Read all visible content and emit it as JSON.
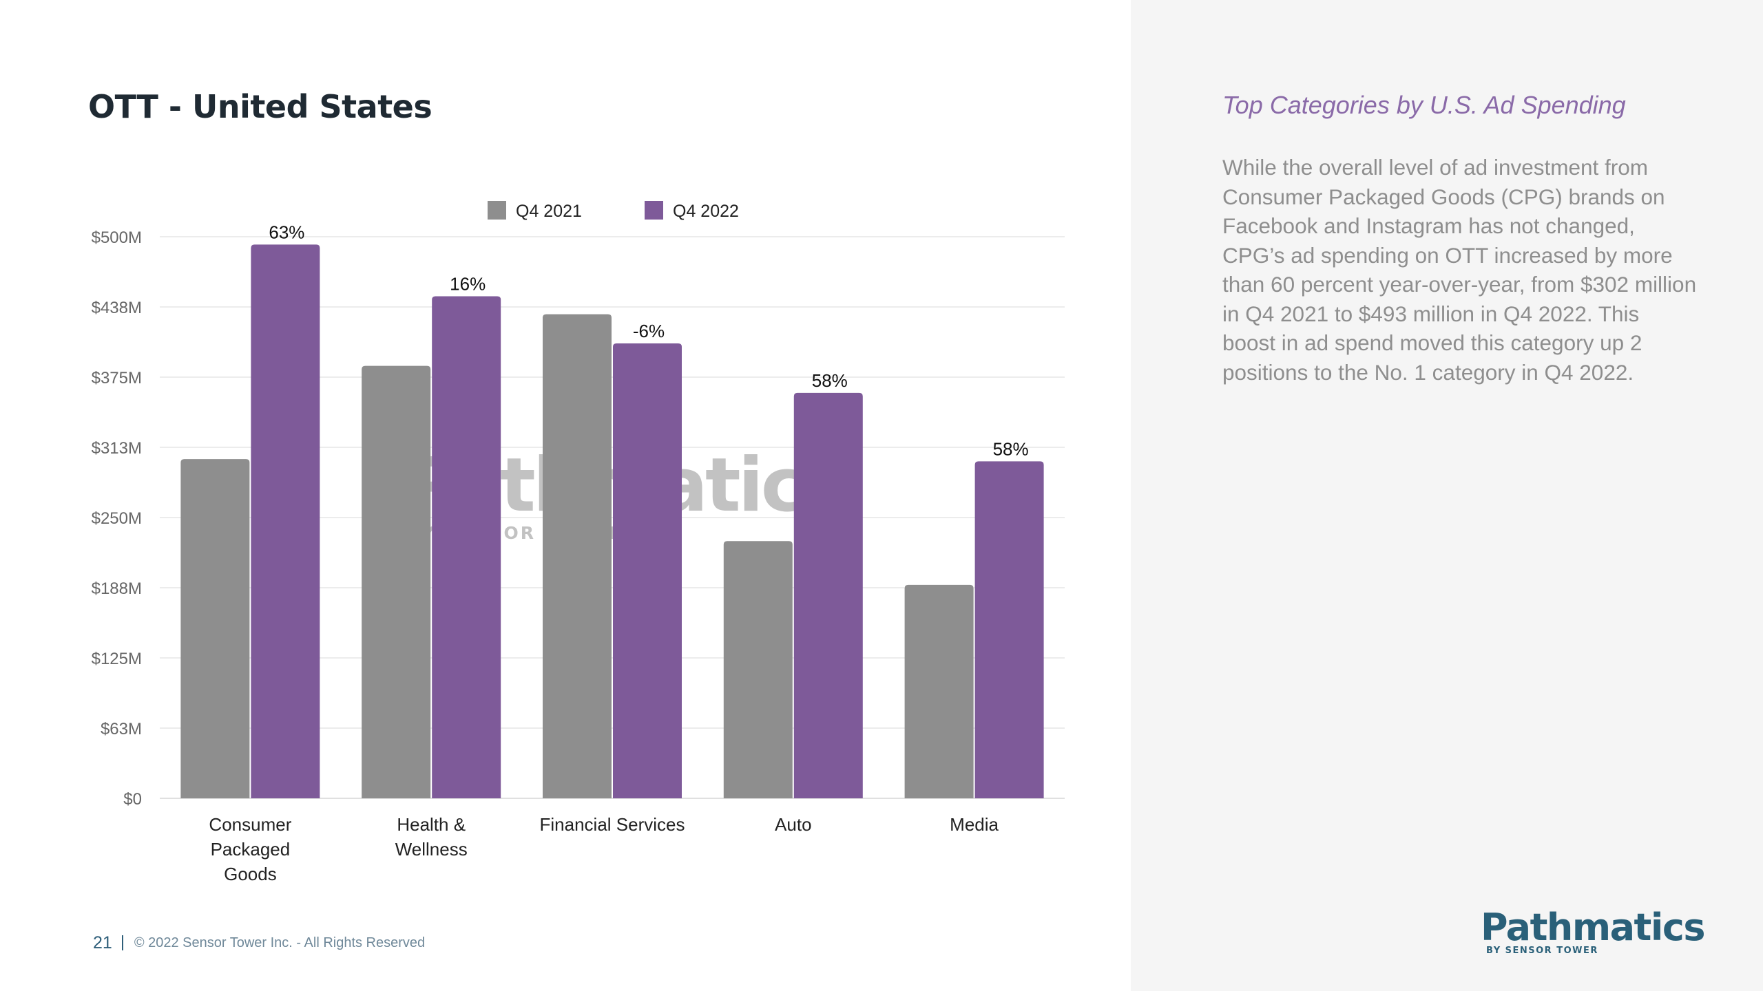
{
  "page": {
    "title": "OTT - United States",
    "number": "21",
    "copyright": "© 2022 Sensor Tower Inc. - All Rights Reserved"
  },
  "sidebar": {
    "heading": "Top Categories by U.S. Ad Spending",
    "body": "While the overall level of ad investment from Consumer Packaged Goods (CPG) brands on Facebook and Instagram has not changed, CPG’s ad spending on OTT increased by more than 60 percent year-over-year, from $302 million in Q4 2021 to $493 million in Q4 2022. This boost in ad spend moved this category up 2 positions to the No. 1 category in Q4 2022."
  },
  "logo": {
    "word": "Pathmatics",
    "sub": "BY SENSOR TOWER"
  },
  "watermark": {
    "word": "Pathmatics",
    "sub": "BY SENSOR TOWER"
  },
  "colors": {
    "q4_2021": "#8e8e8e",
    "q4_2022": "#7e5a99",
    "grid": "#e6e6e6"
  },
  "chart_data": {
    "type": "bar",
    "categories": [
      [
        "Consumer",
        "Packaged",
        "Goods"
      ],
      [
        "Health &",
        "Wellness"
      ],
      [
        "Financial Services"
      ],
      [
        "Auto"
      ],
      [
        "Media"
      ]
    ],
    "series": [
      {
        "name": "Q4 2021",
        "color": "#8e8e8e",
        "values": [
          302,
          385,
          431,
          229,
          190
        ]
      },
      {
        "name": "Q4 2022",
        "color": "#7e5a99",
        "values": [
          493,
          447,
          405,
          361,
          300
        ]
      }
    ],
    "data_labels": [
      "63%",
      "16%",
      "-6%",
      "58%",
      "58%"
    ],
    "y_ticks": [
      0,
      62.5,
      125,
      187.5,
      250,
      312.5,
      375,
      437.5,
      500
    ],
    "y_tick_labels": [
      "$0",
      "$63M",
      "$125M",
      "$188M",
      "$250M",
      "$313M",
      "$375M",
      "$438M",
      "$500M"
    ],
    "ylim": [
      0,
      500
    ],
    "grid": true,
    "legend_position": "top-center"
  }
}
